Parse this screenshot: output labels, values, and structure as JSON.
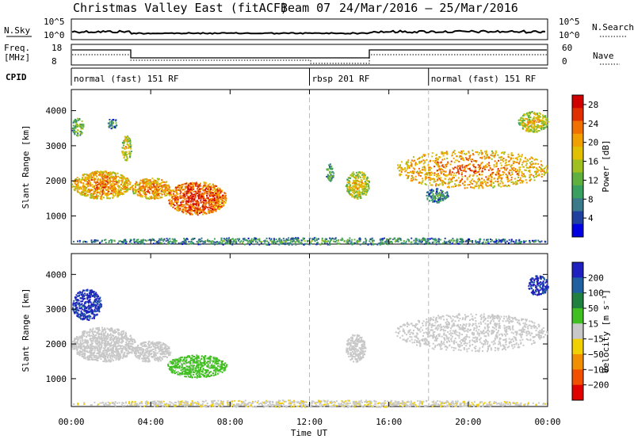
{
  "title": {
    "station": "Christmas Valley East (fitACF)",
    "beam": "Beam 07",
    "dates": "24/Mar/2016 – 25/Mar/2016"
  },
  "strip_labels": {
    "nsky": "N.Sky",
    "nsky_max": "10^5",
    "nsky_min": "10^0",
    "nsearch": "N.Search",
    "nsearch_max": "10^5",
    "nsearch_min": "10^0",
    "freq": "Freq.",
    "freq_unit": "[MHz]",
    "freq_max": "18",
    "freq_min": "8",
    "nave": "Nave",
    "nave_max": "60",
    "nave_min": "0",
    "cpid": "CPID"
  },
  "cpid_segments": [
    {
      "label": "normal (fast) 151 RF",
      "start_h": 0
    },
    {
      "label": "rbsp 201 RF",
      "start_h": 12
    },
    {
      "label": "normal (fast) 151 RF",
      "start_h": 18
    }
  ],
  "x_axis": {
    "label": "Time UT",
    "ticks": [
      "00:00",
      "04:00",
      "08:00",
      "12:00",
      "16:00",
      "20:00",
      "00:00"
    ]
  },
  "colors": {
    "grey_scatter": "#c8c8c8"
  },
  "chart_data": [
    {
      "type": "heatmap",
      "name": "power",
      "ylabel": "Slant Range [km]",
      "yticks": [
        "1000",
        "2000",
        "3000",
        "4000"
      ],
      "ylim": [
        200,
        4600
      ],
      "xlim_hours": [
        0,
        24
      ],
      "colorbar": {
        "label": "Power [dB]",
        "ticks": [
          "4",
          "8",
          "12",
          "16",
          "20",
          "24",
          "28"
        ],
        "range": [
          0,
          30
        ],
        "colors": [
          "#0000e0",
          "#2040a0",
          "#3a7a8a",
          "#3aa060",
          "#60b040",
          "#a0c020",
          "#e0c000",
          "#f0a000",
          "#f07000",
          "#e03000",
          "#d00000"
        ]
      },
      "regions": [
        {
          "t": [
            0,
            3.0
          ],
          "r": [
            1500,
            2300
          ],
          "v": 18
        },
        {
          "t": [
            2.5,
            3.0
          ],
          "r": [
            2600,
            3300
          ],
          "v": 14
        },
        {
          "t": [
            0,
            0.6
          ],
          "r": [
            3300,
            3800
          ],
          "v": 10
        },
        {
          "t": [
            1.8,
            2.3
          ],
          "r": [
            3500,
            3800
          ],
          "v": 6
        },
        {
          "t": [
            3.0,
            5.0
          ],
          "r": [
            1500,
            2100
          ],
          "v": 18
        },
        {
          "t": [
            4.8,
            7.8
          ],
          "r": [
            1050,
            2000
          ],
          "v": 22
        },
        {
          "t": [
            13.8,
            15.0
          ],
          "r": [
            1500,
            2300
          ],
          "v": 14
        },
        {
          "t": [
            12.8,
            13.2
          ],
          "r": [
            2000,
            2500
          ],
          "v": 8
        },
        {
          "t": [
            16.3,
            24.0
          ],
          "r": [
            1800,
            2900
          ],
          "v": 18
        },
        {
          "t": [
            17.8,
            19.0
          ],
          "r": [
            1400,
            1800
          ],
          "v": 5
        },
        {
          "t": [
            22.5,
            24.0
          ],
          "r": [
            3400,
            4000
          ],
          "v": 14
        },
        {
          "t": [
            0,
            24.0
          ],
          "r": [
            200,
            400
          ],
          "v": 6
        }
      ]
    },
    {
      "type": "heatmap",
      "name": "velocity",
      "ylabel": "Slant Range [km]",
      "yticks": [
        "1000",
        "2000",
        "3000",
        "4000"
      ],
      "ylim": [
        200,
        4600
      ],
      "xlim_hours": [
        0,
        24
      ],
      "colorbar": {
        "label": "Velocity [m s⁻¹]",
        "ticks": [
          "200",
          "100",
          "50",
          "15",
          "−15",
          "−50",
          "−100",
          "−200"
        ],
        "range": [
          -250,
          250
        ],
        "colors": [
          "#2020c0",
          "#2060a0",
          "#208040",
          "#40c020",
          "#c8c8c8",
          "#f0d000",
          "#f09000",
          "#f05000",
          "#e00000"
        ]
      },
      "regions": [
        {
          "t": [
            0,
            1.5
          ],
          "r": [
            2700,
            3600
          ],
          "v": 200
        },
        {
          "t": [
            0,
            3.2
          ],
          "r": [
            1500,
            2500
          ],
          "v": 0
        },
        {
          "t": [
            3.0,
            5.0
          ],
          "r": [
            1500,
            2100
          ],
          "v": 0
        },
        {
          "t": [
            4.8,
            7.8
          ],
          "r": [
            1050,
            1700
          ],
          "v": 40
        },
        {
          "t": [
            13.8,
            14.8
          ],
          "r": [
            1500,
            2300
          ],
          "v": 0
        },
        {
          "t": [
            16.3,
            24.0
          ],
          "r": [
            1800,
            2900
          ],
          "v": 0
        },
        {
          "t": [
            23.0,
            24.0
          ],
          "r": [
            3400,
            4000
          ],
          "v": 200
        },
        {
          "t": [
            0,
            24.0
          ],
          "r": [
            200,
            400
          ],
          "v": -20
        }
      ]
    }
  ]
}
